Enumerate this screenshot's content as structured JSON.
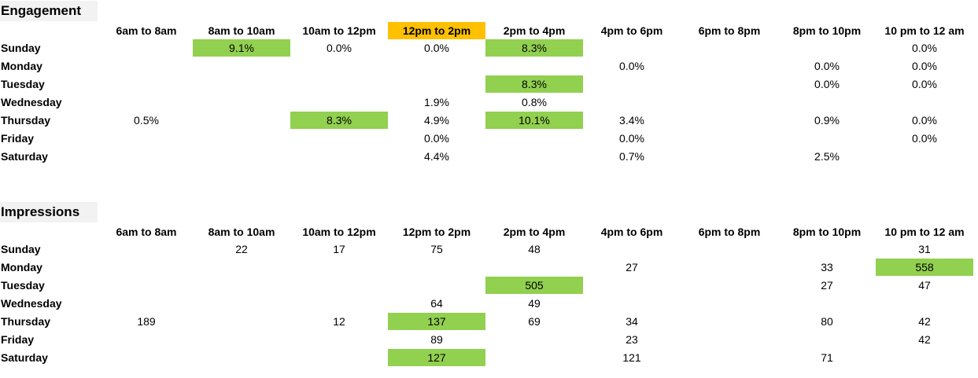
{
  "columns": [
    "6am to 8am",
    "8am to 10am",
    "10am to 12pm",
    "12pm to 2pm",
    "2pm to 4pm",
    "4pm to 6pm",
    "6pm to 8pm",
    "8pm to 10pm",
    "10 pm to 12 am"
  ],
  "days": [
    "Sunday",
    "Monday",
    "Tuesday",
    "Wednesday",
    "Thursday",
    "Friday",
    "Saturday"
  ],
  "colors": {
    "highlight_green": "#92d050",
    "highlight_orange": "#ffc000",
    "title_bg": "#f2f2f2"
  },
  "engagement": {
    "title": "Engagement",
    "highlighted_column": 3,
    "rows": [
      {
        "day": "Sunday",
        "cells": [
          "",
          "9.1%",
          "0.0%",
          "0.0%",
          "8.3%",
          "",
          "",
          "",
          "0.0%"
        ],
        "highlight": [
          1,
          4
        ]
      },
      {
        "day": "Monday",
        "cells": [
          "",
          "",
          "",
          "",
          "",
          "0.0%",
          "",
          "0.0%",
          "0.0%"
        ],
        "highlight": []
      },
      {
        "day": "Tuesday",
        "cells": [
          "",
          "",
          "",
          "",
          "8.3%",
          "",
          "",
          "0.0%",
          "0.0%"
        ],
        "highlight": [
          4
        ]
      },
      {
        "day": "Wednesday",
        "cells": [
          "",
          "",
          "",
          "1.9%",
          "0.8%",
          "",
          "",
          "",
          ""
        ],
        "highlight": []
      },
      {
        "day": "Thursday",
        "cells": [
          "0.5%",
          "",
          "8.3%",
          "4.9%",
          "10.1%",
          "3.4%",
          "",
          "0.9%",
          "0.0%"
        ],
        "highlight": [
          2,
          4
        ]
      },
      {
        "day": "Friday",
        "cells": [
          "",
          "",
          "",
          "0.0%",
          "",
          "0.0%",
          "",
          "",
          "0.0%"
        ],
        "highlight": []
      },
      {
        "day": "Saturday",
        "cells": [
          "",
          "",
          "",
          "4.4%",
          "",
          "0.7%",
          "",
          "2.5%",
          ""
        ],
        "highlight": []
      }
    ]
  },
  "impressions": {
    "title": "Impressions",
    "highlighted_column": -1,
    "rows": [
      {
        "day": "Sunday",
        "cells": [
          "",
          "22",
          "17",
          "75",
          "48",
          "",
          "",
          "",
          "31"
        ],
        "highlight": []
      },
      {
        "day": "Monday",
        "cells": [
          "",
          "",
          "",
          "",
          "",
          "27",
          "",
          "33",
          "558"
        ],
        "highlight": [
          8
        ]
      },
      {
        "day": "Tuesday",
        "cells": [
          "",
          "",
          "",
          "",
          "505",
          "",
          "",
          "27",
          "47"
        ],
        "highlight": [
          4
        ]
      },
      {
        "day": "Wednesday",
        "cells": [
          "",
          "",
          "",
          "64",
          "49",
          "",
          "",
          "",
          ""
        ],
        "highlight": []
      },
      {
        "day": "Thursday",
        "cells": [
          "189",
          "",
          "12",
          "137",
          "69",
          "34",
          "",
          "80",
          "42"
        ],
        "highlight": [
          3
        ]
      },
      {
        "day": "Friday",
        "cells": [
          "",
          "",
          "",
          "89",
          "",
          "23",
          "",
          "",
          "42"
        ],
        "highlight": []
      },
      {
        "day": "Saturday",
        "cells": [
          "",
          "",
          "",
          "127",
          "",
          "121",
          "",
          "71",
          ""
        ],
        "highlight": [
          3
        ]
      }
    ]
  }
}
